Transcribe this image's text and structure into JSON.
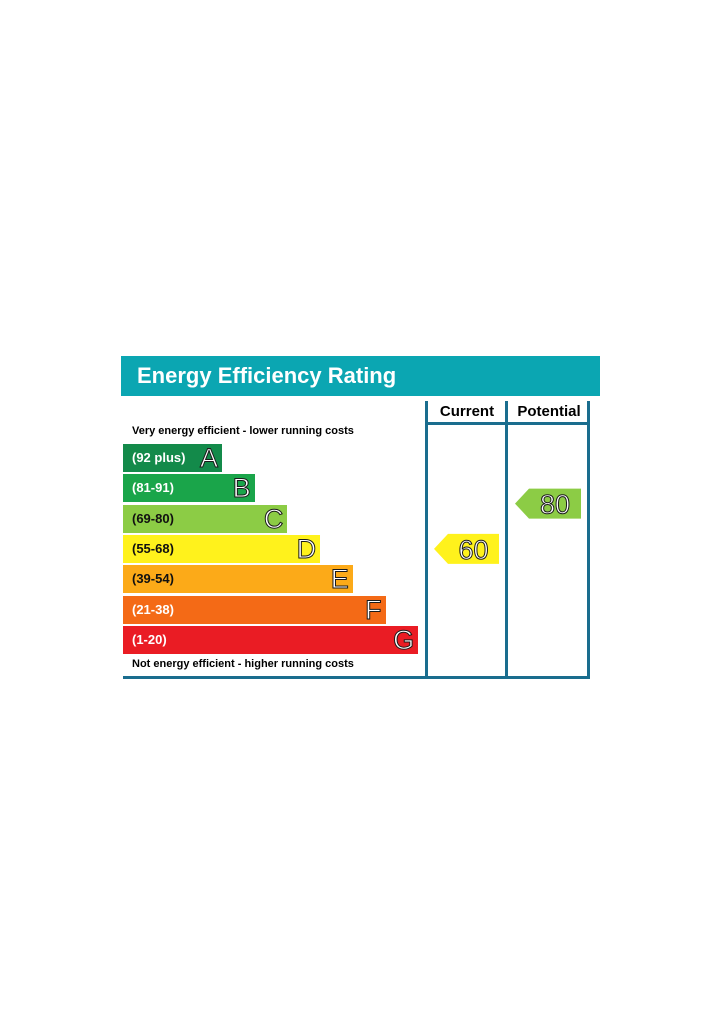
{
  "chart_data": {
    "type": "bar",
    "title": "Energy Efficiency Rating",
    "columns": [
      "Current",
      "Potential"
    ],
    "top_caption": "Very energy efficient - lower running costs",
    "bottom_caption": "Not energy efficient - higher running costs",
    "bands": [
      {
        "letter": "A",
        "range": "(92 plus)",
        "color": "#138a4a"
      },
      {
        "letter": "B",
        "range": "(81-91)",
        "color": "#1aa54a"
      },
      {
        "letter": "C",
        "range": "(69-80)",
        "color": "#8ccc45"
      },
      {
        "letter": "D",
        "range": "(55-68)",
        "color": "#fff21c"
      },
      {
        "letter": "E",
        "range": "(39-54)",
        "color": "#fcaa18"
      },
      {
        "letter": "F",
        "range": "(21-38)",
        "color": "#f46a16"
      },
      {
        "letter": "G",
        "range": "(1-20)",
        "color": "#ea1c24"
      }
    ],
    "current": {
      "value": 60,
      "band": "D",
      "color": "#fff21c"
    },
    "potential": {
      "value": 80,
      "band": "C",
      "color": "#8ccc45"
    }
  }
}
